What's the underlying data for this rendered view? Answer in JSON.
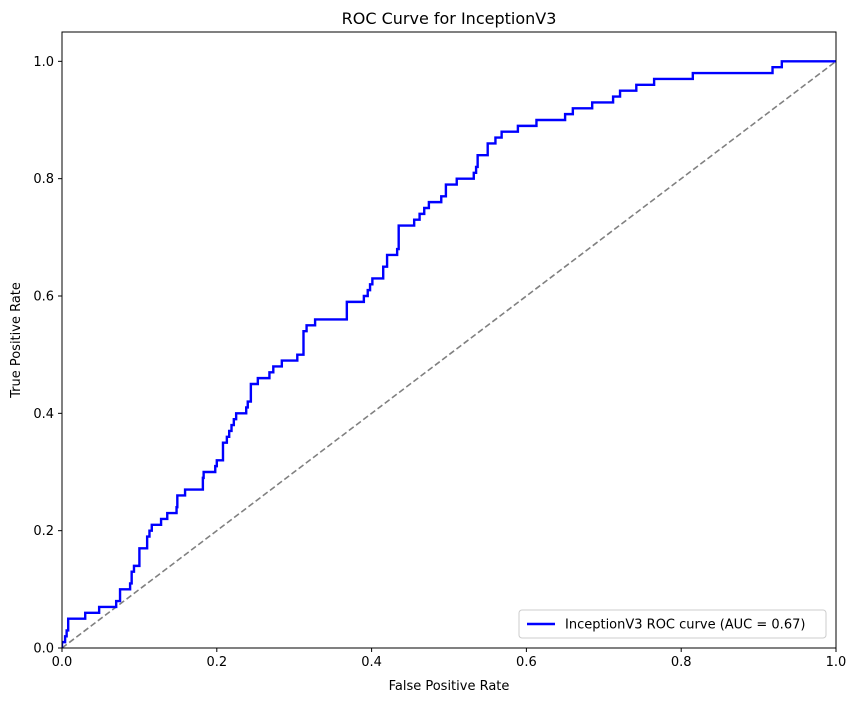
{
  "chart_data": {
    "type": "line",
    "title": "ROC Curve for InceptionV3",
    "xlabel": "False Positive Rate",
    "ylabel": "True Positive Rate",
    "xlim": [
      0.0,
      1.0
    ],
    "ylim": [
      0.0,
      1.05
    ],
    "xticks": [
      "0.0",
      "0.2",
      "0.4",
      "0.6",
      "0.8",
      "1.0"
    ],
    "yticks": [
      "0.0",
      "0.2",
      "0.4",
      "0.6",
      "0.8",
      "1.0"
    ],
    "grid": false,
    "legend_position": "bottom-right",
    "series": [
      {
        "name": "InceptionV3 ROC curve (AUC = 0.67)",
        "color": "#0000ff",
        "style": "step",
        "points": [
          [
            0.0,
            0.0
          ],
          [
            0.0,
            0.01
          ],
          [
            0.004,
            0.01
          ],
          [
            0.004,
            0.02
          ],
          [
            0.006,
            0.02
          ],
          [
            0.006,
            0.03
          ],
          [
            0.008,
            0.03
          ],
          [
            0.008,
            0.05
          ],
          [
            0.03,
            0.05
          ],
          [
            0.03,
            0.06
          ],
          [
            0.048,
            0.06
          ],
          [
            0.048,
            0.07
          ],
          [
            0.07,
            0.07
          ],
          [
            0.07,
            0.08
          ],
          [
            0.075,
            0.08
          ],
          [
            0.075,
            0.1
          ],
          [
            0.088,
            0.1
          ],
          [
            0.088,
            0.11
          ],
          [
            0.09,
            0.11
          ],
          [
            0.09,
            0.13
          ],
          [
            0.093,
            0.13
          ],
          [
            0.093,
            0.14
          ],
          [
            0.1,
            0.14
          ],
          [
            0.1,
            0.17
          ],
          [
            0.11,
            0.17
          ],
          [
            0.11,
            0.19
          ],
          [
            0.113,
            0.19
          ],
          [
            0.113,
            0.2
          ],
          [
            0.116,
            0.2
          ],
          [
            0.116,
            0.21
          ],
          [
            0.128,
            0.21
          ],
          [
            0.128,
            0.22
          ],
          [
            0.136,
            0.22
          ],
          [
            0.136,
            0.23
          ],
          [
            0.148,
            0.23
          ],
          [
            0.148,
            0.24
          ],
          [
            0.149,
            0.24
          ],
          [
            0.149,
            0.26
          ],
          [
            0.159,
            0.26
          ],
          [
            0.159,
            0.27
          ],
          [
            0.182,
            0.27
          ],
          [
            0.182,
            0.29
          ],
          [
            0.183,
            0.29
          ],
          [
            0.183,
            0.3
          ],
          [
            0.198,
            0.3
          ],
          [
            0.198,
            0.31
          ],
          [
            0.2,
            0.31
          ],
          [
            0.2,
            0.32
          ],
          [
            0.208,
            0.32
          ],
          [
            0.208,
            0.35
          ],
          [
            0.213,
            0.35
          ],
          [
            0.213,
            0.36
          ],
          [
            0.216,
            0.36
          ],
          [
            0.216,
            0.37
          ],
          [
            0.219,
            0.37
          ],
          [
            0.219,
            0.38
          ],
          [
            0.222,
            0.38
          ],
          [
            0.222,
            0.39
          ],
          [
            0.225,
            0.39
          ],
          [
            0.225,
            0.4
          ],
          [
            0.238,
            0.4
          ],
          [
            0.238,
            0.41
          ],
          [
            0.24,
            0.41
          ],
          [
            0.24,
            0.42
          ],
          [
            0.244,
            0.42
          ],
          [
            0.244,
            0.45
          ],
          [
            0.253,
            0.45
          ],
          [
            0.253,
            0.46
          ],
          [
            0.268,
            0.46
          ],
          [
            0.268,
            0.47
          ],
          [
            0.273,
            0.47
          ],
          [
            0.273,
            0.48
          ],
          [
            0.284,
            0.48
          ],
          [
            0.284,
            0.49
          ],
          [
            0.304,
            0.49
          ],
          [
            0.304,
            0.5
          ],
          [
            0.312,
            0.5
          ],
          [
            0.312,
            0.54
          ],
          [
            0.316,
            0.54
          ],
          [
            0.316,
            0.55
          ],
          [
            0.327,
            0.55
          ],
          [
            0.327,
            0.56
          ],
          [
            0.368,
            0.56
          ],
          [
            0.368,
            0.59
          ],
          [
            0.39,
            0.59
          ],
          [
            0.39,
            0.6
          ],
          [
            0.395,
            0.6
          ],
          [
            0.395,
            0.61
          ],
          [
            0.398,
            0.61
          ],
          [
            0.398,
            0.62
          ],
          [
            0.401,
            0.62
          ],
          [
            0.401,
            0.63
          ],
          [
            0.415,
            0.63
          ],
          [
            0.415,
            0.65
          ],
          [
            0.42,
            0.65
          ],
          [
            0.42,
            0.67
          ],
          [
            0.433,
            0.67
          ],
          [
            0.433,
            0.68
          ],
          [
            0.435,
            0.68
          ],
          [
            0.435,
            0.72
          ],
          [
            0.455,
            0.72
          ],
          [
            0.455,
            0.73
          ],
          [
            0.462,
            0.73
          ],
          [
            0.462,
            0.74
          ],
          [
            0.468,
            0.74
          ],
          [
            0.468,
            0.75
          ],
          [
            0.474,
            0.75
          ],
          [
            0.474,
            0.76
          ],
          [
            0.49,
            0.76
          ],
          [
            0.49,
            0.77
          ],
          [
            0.496,
            0.77
          ],
          [
            0.496,
            0.79
          ],
          [
            0.51,
            0.79
          ],
          [
            0.51,
            0.8
          ],
          [
            0.532,
            0.8
          ],
          [
            0.532,
            0.81
          ],
          [
            0.535,
            0.81
          ],
          [
            0.535,
            0.82
          ],
          [
            0.537,
            0.82
          ],
          [
            0.537,
            0.84
          ],
          [
            0.55,
            0.84
          ],
          [
            0.55,
            0.86
          ],
          [
            0.56,
            0.86
          ],
          [
            0.56,
            0.87
          ],
          [
            0.568,
            0.87
          ],
          [
            0.568,
            0.88
          ],
          [
            0.589,
            0.88
          ],
          [
            0.589,
            0.89
          ],
          [
            0.613,
            0.89
          ],
          [
            0.613,
            0.9
          ],
          [
            0.65,
            0.9
          ],
          [
            0.65,
            0.91
          ],
          [
            0.66,
            0.91
          ],
          [
            0.66,
            0.92
          ],
          [
            0.685,
            0.92
          ],
          [
            0.685,
            0.93
          ],
          [
            0.712,
            0.93
          ],
          [
            0.712,
            0.94
          ],
          [
            0.721,
            0.94
          ],
          [
            0.721,
            0.95
          ],
          [
            0.742,
            0.95
          ],
          [
            0.742,
            0.96
          ],
          [
            0.765,
            0.96
          ],
          [
            0.765,
            0.97
          ],
          [
            0.815,
            0.97
          ],
          [
            0.815,
            0.98
          ],
          [
            0.918,
            0.98
          ],
          [
            0.918,
            0.99
          ],
          [
            0.93,
            0.99
          ],
          [
            0.93,
            1.0
          ],
          [
            1.0,
            1.0
          ]
        ]
      },
      {
        "name": "",
        "color": "#808080",
        "style": "dashed",
        "points": [
          [
            0.0,
            0.0
          ],
          [
            1.0,
            1.0
          ]
        ]
      }
    ]
  }
}
